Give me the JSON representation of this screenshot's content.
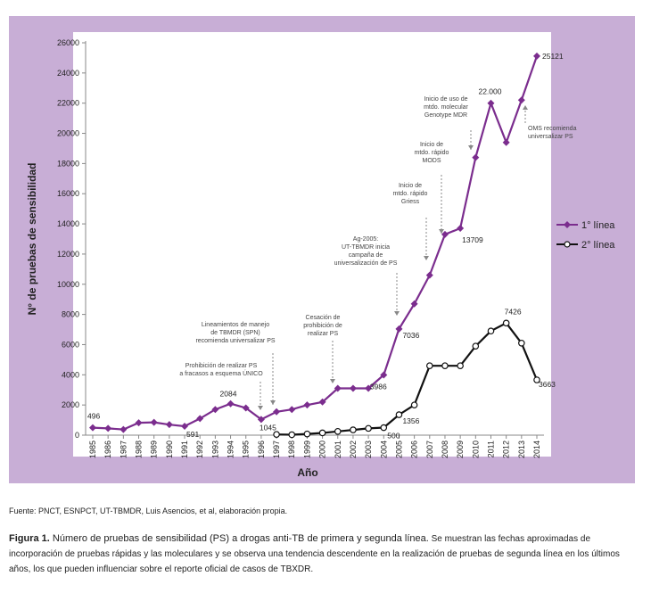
{
  "chart_data": {
    "type": "line",
    "ylabel": "N° de pruebas de sensibilidad",
    "xlabel": "Año",
    "ylim": [
      0,
      26000
    ],
    "yticks": [
      "0",
      "2000",
      "4000",
      "6000",
      "8000",
      "10000",
      "12000",
      "14000",
      "16000",
      "18000",
      "20000",
      "22000",
      "24000",
      "26000"
    ],
    "x": [
      "1985",
      "1986",
      "1987",
      "1988",
      "1989",
      "1990",
      "1991",
      "1992",
      "1993",
      "1994",
      "1995",
      "1996",
      "1997",
      "1998",
      "1999",
      "2000",
      "2001",
      "2002",
      "2003",
      "2004",
      "2005",
      "2006",
      "2007",
      "2008",
      "2009",
      "2010",
      "2011",
      "2012",
      "2013",
      "2014"
    ],
    "grid": false,
    "legend_position": "right",
    "series": [
      {
        "name": "1° línea",
        "color": "#7b2d8e",
        "marker": "filled-diamond",
        "values": [
          496,
          450,
          380,
          820,
          850,
          700,
          591,
          1100,
          1700,
          2084,
          1800,
          1045,
          1550,
          1700,
          2000,
          2200,
          3100,
          3100,
          3100,
          3986,
          7036,
          8700,
          10600,
          13300,
          13709,
          18400,
          22000,
          19400,
          22200,
          25121
        ]
      },
      {
        "name": "2° línea",
        "color": "#111111",
        "marker": "open-circle",
        "values": [
          null,
          null,
          null,
          null,
          null,
          null,
          null,
          null,
          null,
          null,
          null,
          null,
          50,
          30,
          80,
          150,
          250,
          350,
          450,
          500,
          1356,
          2000,
          4600,
          4600,
          4600,
          5900,
          6900,
          7426,
          6100,
          3663
        ]
      }
    ],
    "data_labels": [
      {
        "x": "1985",
        "y": 496,
        "text": "496"
      },
      {
        "x": "1991",
        "y": 591,
        "text": "591"
      },
      {
        "x": "1994",
        "y": 2084,
        "text": "2084"
      },
      {
        "x": "1996",
        "y": 1045,
        "text": "1045"
      },
      {
        "x": "2004",
        "y": 3986,
        "text": "3986"
      },
      {
        "x": "2004",
        "y": 500,
        "text": "500"
      },
      {
        "x": "2005",
        "y": 1356,
        "text": "1356"
      },
      {
        "x": "2005",
        "y": 7036,
        "text": "7036"
      },
      {
        "x": "2009",
        "y": 13709,
        "text": "13709"
      },
      {
        "x": "2011",
        "y": 22000,
        "text": "22.000"
      },
      {
        "x": "2012",
        "y": 7426,
        "text": "7426"
      },
      {
        "x": "2014",
        "y": 3663,
        "text": "3663"
      },
      {
        "x": "2014",
        "y": 25121,
        "text": "25121"
      }
    ],
    "annotations": [
      {
        "lines": [
          "Prohibición de realizar PS",
          "a fracasos a esquema ÚNICO"
        ],
        "year": "1996"
      },
      {
        "lines": [
          "Lineamientos de manejo",
          "de TBMDR (SPN)",
          "recomienda universalizar PS"
        ],
        "year": "1997"
      },
      {
        "lines": [
          "Cesación de",
          "prohibición de",
          "realizar PS"
        ],
        "year": "2001"
      },
      {
        "lines": [
          "Ag-2005:",
          "UT-TBMDR inicia",
          "campaña de",
          "universalización de PS"
        ],
        "year": "2005"
      },
      {
        "lines": [
          "Inicio de",
          "mtdo. rápido",
          "Griess"
        ],
        "year": "2007"
      },
      {
        "lines": [
          "Inicio de",
          "mtdo. rápido",
          "MODS"
        ],
        "year": "2008"
      },
      {
        "lines": [
          "Inicio de uso de",
          "mtdo. molecular",
          "Genotype MDR"
        ],
        "year": "2010"
      },
      {
        "lines": [
          "OMS recomienda",
          "universalizar PS"
        ],
        "year": "2013"
      }
    ]
  },
  "source": "Fuente: PNCT, ESNPCT, UT-TBMDR, Luis Asencios, et al, elaboración propia.",
  "caption": {
    "bold": "Figura 1.",
    "title": " Número de pruebas de sensibilidad (PS) a drogas anti-TB de primera y segunda línea.",
    "text": " Se muestran las fechas aproximadas de incorporación de pruebas rápidas y las moleculares y se observa una tendencia descendente en la realización de pruebas de segunda línea en los últimos años, los que pueden influenciar sobre el reporte oficial de casos de TBXDR."
  }
}
